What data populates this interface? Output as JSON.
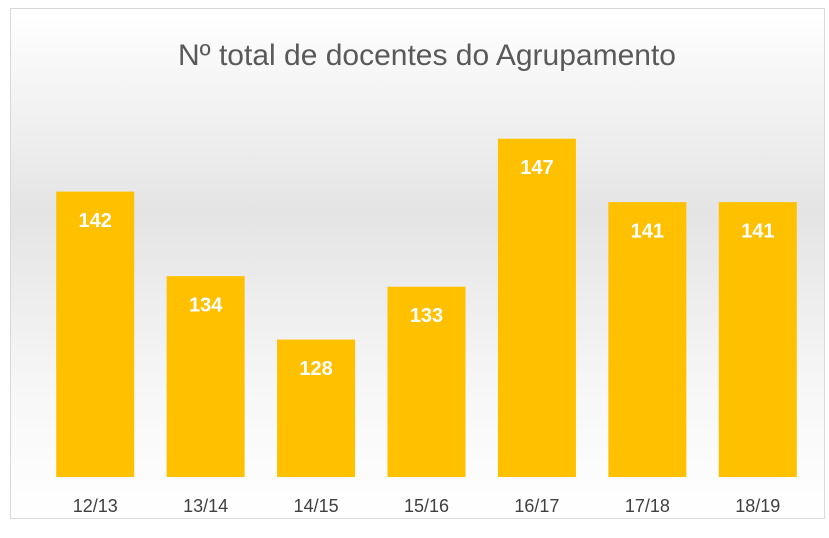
{
  "chart_data": {
    "type": "bar",
    "title": "Nº total de docentes do Agrupamento",
    "categories": [
      "12/13",
      "13/14",
      "14/15",
      "15/16",
      "16/17",
      "17/18",
      "18/19"
    ],
    "values": [
      142,
      134,
      128,
      133,
      147,
      141,
      141
    ],
    "color": "#ffc000",
    "ylim": [
      115,
      150
    ]
  }
}
